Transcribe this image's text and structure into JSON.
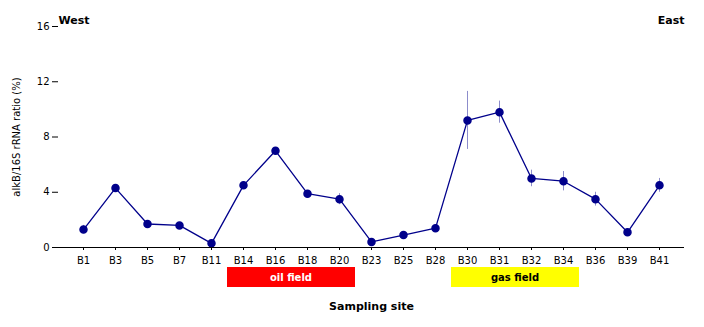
{
  "chart_data": {
    "type": "line",
    "categories": [
      "B1",
      "B3",
      "B5",
      "B7",
      "B11",
      "B14",
      "B16",
      "B18",
      "B20",
      "B23",
      "B25",
      "B28",
      "B30",
      "B31",
      "B32",
      "B34",
      "B36",
      "B39",
      "B41"
    ],
    "values": [
      1.3,
      4.3,
      1.7,
      1.6,
      0.3,
      4.5,
      7.0,
      3.9,
      3.5,
      0.4,
      0.9,
      1.4,
      9.2,
      9.8,
      5.0,
      4.8,
      3.5,
      1.1,
      4.5
    ],
    "yerr": [
      0.3,
      0.2,
      0.1,
      0.1,
      0.05,
      0.2,
      0.2,
      0.2,
      0.4,
      0.2,
      0.1,
      0.1,
      2.1,
      0.8,
      0.6,
      0.7,
      0.5,
      0.1,
      0.5
    ],
    "color": "#00008B",
    "marker": "circle",
    "ylim": [
      0,
      16
    ],
    "yticks": [
      0,
      4,
      8,
      12,
      16
    ],
    "ylabel": "alkB/16S rRNA ratio (%)",
    "xlabel": "Sampling site",
    "direction_labels": [
      "West",
      "East"
    ],
    "regions": [
      {
        "label": "oil field",
        "from": "B14",
        "to": "B20",
        "color": "#FF0000"
      },
      {
        "label": "gas field",
        "from": "B30",
        "to": "B34",
        "color": "#FFFF00"
      }
    ],
    "grid": false
  }
}
